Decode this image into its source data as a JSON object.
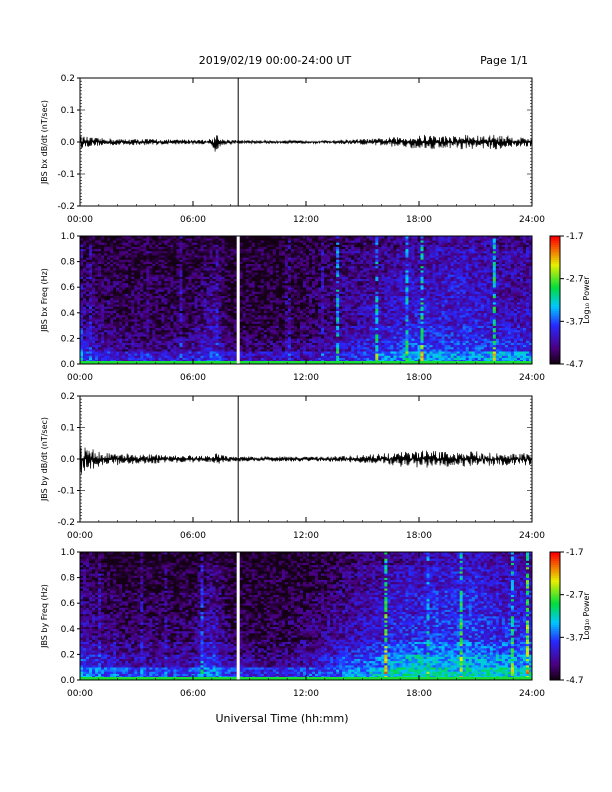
{
  "header": {
    "date_range": "2019/02/19  00:00-24:00 UT",
    "page": "Page 1/1"
  },
  "footer": {
    "xlabel": "Universal Time (hh:mm)"
  },
  "chart_data": [
    {
      "id": "bx-waveform",
      "type": "line",
      "ylabel": "JBS bx dB/dt (nT/sec)",
      "xlabel": "",
      "xlim": [
        0,
        24
      ],
      "ylim": [
        -0.2,
        0.2
      ],
      "x_tick_labels": [
        "00:00",
        "06:00",
        "12:00",
        "18:00",
        "24:00"
      ],
      "y_tick_labels": [
        "0.2",
        "0.1",
        "0.0",
        "-0.1",
        "-0.2"
      ],
      "marker_hour": 8.4,
      "x": [
        0,
        0.5,
        1,
        1.5,
        2,
        2.5,
        3,
        3.5,
        4,
        4.5,
        5,
        5.5,
        6,
        6.5,
        7,
        7.25,
        7.5,
        8,
        8.5,
        9,
        9.5,
        10,
        10.5,
        11,
        11.5,
        12,
        12.5,
        13,
        13.5,
        14,
        14.5,
        15,
        15.5,
        16,
        16.5,
        17,
        17.5,
        18,
        18.5,
        19,
        19.5,
        20,
        20.5,
        21,
        21.5,
        22,
        22.5,
        23,
        23.5,
        24
      ],
      "series": [
        {
          "values_max": [
            0.02,
            0.015,
            0.012,
            0.012,
            0.01,
            0.01,
            0.01,
            0.01,
            0.01,
            0.008,
            0.008,
            0.008,
            0.008,
            0.008,
            0.01,
            0.03,
            0.01,
            0.008,
            0.005,
            0.005,
            0.005,
            0.005,
            0.005,
            0.005,
            0.005,
            0.005,
            0.005,
            0.005,
            0.006,
            0.008,
            0.008,
            0.01,
            0.01,
            0.012,
            0.015,
            0.015,
            0.02,
            0.02,
            0.025,
            0.02,
            0.02,
            0.02,
            0.025,
            0.02,
            0.02,
            0.025,
            0.02,
            0.02,
            0.015,
            0.015
          ],
          "values_min": [
            -0.02,
            -0.015,
            -0.012,
            -0.012,
            -0.01,
            -0.01,
            -0.01,
            -0.01,
            -0.01,
            -0.008,
            -0.008,
            -0.008,
            -0.008,
            -0.008,
            -0.01,
            -0.04,
            -0.01,
            -0.008,
            -0.005,
            -0.005,
            -0.005,
            -0.005,
            -0.005,
            -0.005,
            -0.005,
            -0.005,
            -0.005,
            -0.005,
            -0.006,
            -0.008,
            -0.008,
            -0.01,
            -0.01,
            -0.012,
            -0.015,
            -0.015,
            -0.02,
            -0.02,
            -0.025,
            -0.02,
            -0.02,
            -0.02,
            -0.025,
            -0.02,
            -0.02,
            -0.025,
            -0.02,
            -0.02,
            -0.015,
            -0.015
          ]
        }
      ]
    },
    {
      "id": "bx-spectrogram",
      "type": "heatmap",
      "ylabel": "JBS bx Freq (Hz)",
      "xlim": [
        0,
        24
      ],
      "ylim": [
        0,
        1.0
      ],
      "x_tick_labels": [
        "00:00",
        "06:00",
        "12:00",
        "18:00",
        "24:00"
      ],
      "y_tick_labels": [
        "1.0",
        "0.8",
        "0.6",
        "0.4",
        "0.2",
        "0.0"
      ],
      "colorbar": {
        "label": "Log₁₀ Power",
        "tick_labels": [
          "-1.7",
          "-2.7",
          "-3.7",
          "-4.7"
        ],
        "range": [
          -4.7,
          -1.7
        ]
      },
      "gap_hour": 8.4,
      "hour_bins": [
        0,
        1,
        2,
        3,
        4,
        5,
        6,
        7,
        8,
        9,
        10,
        11,
        12,
        13,
        14,
        15,
        16,
        17,
        18,
        19,
        20,
        21,
        22,
        23
      ],
      "freq_bins": [
        0.0,
        0.02,
        0.1,
        0.2,
        0.3,
        0.5,
        0.7,
        0.9
      ],
      "log_power": [
        [
          -3.2,
          -3.3,
          -3.3,
          -3.3,
          -3.3,
          -3.3,
          -3.3,
          -3.2,
          -3.3,
          -3.3,
          -3.3,
          -3.3,
          -3.3,
          -3.3,
          -3.2,
          -3.2,
          -3.1,
          -3.1,
          -3.0,
          -3.0,
          -3.0,
          -3.0,
          -3.0,
          -3.1
        ],
        [
          -3.7,
          -3.9,
          -4.0,
          -4.0,
          -4.0,
          -4.0,
          -4.0,
          -3.8,
          -4.1,
          -4.1,
          -4.1,
          -4.1,
          -4.1,
          -4.0,
          -3.9,
          -3.8,
          -3.6,
          -3.5,
          -3.4,
          -3.4,
          -3.5,
          -3.5,
          -3.4,
          -3.5
        ],
        [
          -4.0,
          -4.2,
          -4.3,
          -4.3,
          -4.3,
          -4.3,
          -4.3,
          -4.0,
          -4.4,
          -4.4,
          -4.4,
          -4.4,
          -4.3,
          -4.2,
          -4.1,
          -4.0,
          -3.9,
          -3.8,
          -3.7,
          -3.8,
          -3.8,
          -3.8,
          -3.8,
          -3.9
        ],
        [
          -4.2,
          -4.3,
          -4.4,
          -4.4,
          -4.4,
          -4.4,
          -4.4,
          -4.1,
          -4.5,
          -4.5,
          -4.5,
          -4.5,
          -4.4,
          -4.3,
          -4.2,
          -4.1,
          -4.0,
          -3.9,
          -3.9,
          -3.9,
          -3.9,
          -3.9,
          -4.0,
          -4.0
        ],
        [
          -4.3,
          -4.4,
          -4.5,
          -4.5,
          -4.5,
          -4.5,
          -4.5,
          -4.2,
          -4.6,
          -4.6,
          -4.6,
          -4.6,
          -4.5,
          -4.4,
          -4.3,
          -4.2,
          -4.1,
          -4.1,
          -4.0,
          -4.0,
          -4.0,
          -4.0,
          -4.1,
          -4.1
        ],
        [
          -4.4,
          -4.5,
          -4.5,
          -4.5,
          -4.5,
          -4.5,
          -4.5,
          -4.3,
          -4.6,
          -4.6,
          -4.6,
          -4.6,
          -4.5,
          -4.4,
          -4.3,
          -4.3,
          -4.2,
          -4.1,
          -4.1,
          -4.1,
          -4.0,
          -4.1,
          -4.1,
          -4.2
        ],
        [
          -4.5,
          -4.5,
          -4.6,
          -4.6,
          -4.6,
          -4.6,
          -4.6,
          -4.4,
          -4.6,
          -4.6,
          -4.6,
          -4.6,
          -4.5,
          -4.5,
          -4.4,
          -4.3,
          -4.3,
          -4.2,
          -4.2,
          -4.1,
          -4.1,
          -4.1,
          -4.2,
          -4.2
        ],
        [
          -4.6,
          -4.6,
          -4.6,
          -4.6,
          -4.6,
          -4.6,
          -4.6,
          -4.5,
          -4.7,
          -4.7,
          -4.7,
          -4.7,
          -4.6,
          -4.6,
          -4.5,
          -4.4,
          -4.4,
          -4.3,
          -4.3,
          -4.2,
          -4.2,
          -4.2,
          -4.3,
          -4.3
        ]
      ]
    },
    {
      "id": "by-waveform",
      "type": "line",
      "ylabel": "JBS by dB/dt (nT/sec)",
      "xlim": [
        0,
        24
      ],
      "ylim": [
        -0.2,
        0.2
      ],
      "x_tick_labels": [
        "00:00",
        "06:00",
        "12:00",
        "18:00",
        "24:00"
      ],
      "y_tick_labels": [
        "0.2",
        "0.1",
        "0.0",
        "-0.1",
        "-0.2"
      ],
      "marker_hour": 8.4,
      "x": [
        0,
        0.5,
        1,
        1.5,
        2,
        2.5,
        3,
        3.5,
        4,
        4.5,
        5,
        5.5,
        6,
        6.5,
        7,
        7.25,
        7.5,
        8,
        8.5,
        9,
        9.5,
        10,
        10.5,
        11,
        11.5,
        12,
        12.5,
        13,
        13.5,
        14,
        14.5,
        15,
        15.5,
        16,
        16.5,
        17,
        17.5,
        18,
        18.5,
        19,
        19.5,
        20,
        20.5,
        21,
        21.5,
        22,
        22.5,
        23,
        23.5,
        24
      ],
      "series": [
        {
          "values_max": [
            0.05,
            0.035,
            0.025,
            0.02,
            0.02,
            0.018,
            0.015,
            0.015,
            0.015,
            0.012,
            0.012,
            0.012,
            0.012,
            0.01,
            0.012,
            0.02,
            0.012,
            0.01,
            0.008,
            0.008,
            0.008,
            0.008,
            0.008,
            0.008,
            0.008,
            0.008,
            0.008,
            0.008,
            0.01,
            0.01,
            0.012,
            0.012,
            0.015,
            0.018,
            0.02,
            0.025,
            0.025,
            0.03,
            0.03,
            0.025,
            0.025,
            0.02,
            0.025,
            0.025,
            0.02,
            0.025,
            0.02,
            0.02,
            0.02,
            0.02
          ],
          "values_min": [
            -0.05,
            -0.035,
            -0.025,
            -0.02,
            -0.02,
            -0.018,
            -0.015,
            -0.015,
            -0.015,
            -0.012,
            -0.012,
            -0.012,
            -0.012,
            -0.01,
            -0.012,
            -0.02,
            -0.012,
            -0.01,
            -0.008,
            -0.008,
            -0.008,
            -0.008,
            -0.008,
            -0.008,
            -0.008,
            -0.008,
            -0.008,
            -0.008,
            -0.01,
            -0.01,
            -0.012,
            -0.012,
            -0.015,
            -0.018,
            -0.02,
            -0.025,
            -0.025,
            -0.03,
            -0.03,
            -0.025,
            -0.025,
            -0.02,
            -0.025,
            -0.025,
            -0.02,
            -0.025,
            -0.02,
            -0.02,
            -0.02,
            -0.02
          ]
        }
      ]
    },
    {
      "id": "by-spectrogram",
      "type": "heatmap",
      "ylabel": "JBS by Freq (Hz)",
      "xlim": [
        0,
        24
      ],
      "ylim": [
        0,
        1.0
      ],
      "x_tick_labels": [
        "00:00",
        "06:00",
        "12:00",
        "18:00",
        "24:00"
      ],
      "y_tick_labels": [
        "1.0",
        "0.8",
        "0.6",
        "0.4",
        "0.2",
        "0.0"
      ],
      "colorbar": {
        "label": "Log₁₀ Power",
        "tick_labels": [
          "-1.7",
          "-2.7",
          "-3.7",
          "-4.7"
        ],
        "range": [
          -4.7,
          -1.7
        ]
      },
      "gap_hour": 8.4,
      "hour_bins": [
        0,
        1,
        2,
        3,
        4,
        5,
        6,
        7,
        8,
        9,
        10,
        11,
        12,
        13,
        14,
        15,
        16,
        17,
        18,
        19,
        20,
        21,
        22,
        23
      ],
      "freq_bins": [
        0.0,
        0.02,
        0.1,
        0.2,
        0.3,
        0.5,
        0.7,
        0.9
      ],
      "log_power": [
        [
          -3.1,
          -3.2,
          -3.2,
          -3.2,
          -3.2,
          -3.2,
          -3.2,
          -3.1,
          -3.2,
          -3.2,
          -3.2,
          -3.2,
          -3.2,
          -3.2,
          -3.1,
          -3.1,
          -3.0,
          -3.0,
          -3.0,
          -3.0,
          -3.0,
          -3.0,
          -3.0,
          -3.0
        ],
        [
          -3.4,
          -3.6,
          -3.7,
          -3.8,
          -3.8,
          -3.8,
          -3.8,
          -3.5,
          -3.8,
          -3.9,
          -3.9,
          -3.9,
          -3.8,
          -3.7,
          -3.6,
          -3.5,
          -3.3,
          -3.2,
          -3.2,
          -3.2,
          -3.3,
          -3.2,
          -3.2,
          -3.3
        ],
        [
          -3.8,
          -4.0,
          -4.1,
          -4.2,
          -4.2,
          -4.2,
          -4.2,
          -3.8,
          -4.2,
          -4.3,
          -4.3,
          -4.3,
          -4.2,
          -4.0,
          -3.8,
          -3.7,
          -3.6,
          -3.4,
          -3.3,
          -3.4,
          -3.4,
          -3.4,
          -3.4,
          -3.5
        ],
        [
          -4.0,
          -4.2,
          -4.3,
          -4.3,
          -4.3,
          -4.3,
          -4.3,
          -4.0,
          -4.4,
          -4.4,
          -4.4,
          -4.4,
          -4.3,
          -4.2,
          -4.0,
          -3.9,
          -3.8,
          -3.7,
          -3.6,
          -3.6,
          -3.6,
          -3.6,
          -3.7,
          -3.7
        ],
        [
          -4.2,
          -4.3,
          -4.4,
          -4.4,
          -4.4,
          -4.4,
          -4.4,
          -4.1,
          -4.5,
          -4.5,
          -4.5,
          -4.5,
          -4.4,
          -4.3,
          -4.2,
          -4.1,
          -4.0,
          -3.9,
          -3.9,
          -3.8,
          -3.8,
          -3.8,
          -3.9,
          -3.9
        ],
        [
          -4.3,
          -4.4,
          -4.5,
          -4.5,
          -4.5,
          -4.5,
          -4.5,
          -4.2,
          -4.6,
          -4.6,
          -4.6,
          -4.6,
          -4.5,
          -4.4,
          -4.3,
          -4.2,
          -4.1,
          -4.0,
          -4.0,
          -3.9,
          -3.9,
          -3.9,
          -4.0,
          -4.0
        ],
        [
          -4.4,
          -4.5,
          -4.6,
          -4.6,
          -4.6,
          -4.6,
          -4.6,
          -4.3,
          -4.6,
          -4.6,
          -4.6,
          -4.6,
          -4.6,
          -4.5,
          -4.4,
          -4.3,
          -4.2,
          -4.1,
          -4.1,
          -4.0,
          -4.0,
          -4.0,
          -4.1,
          -4.1
        ],
        [
          -4.5,
          -4.6,
          -4.7,
          -4.7,
          -4.7,
          -4.7,
          -4.7,
          -4.5,
          -4.7,
          -4.7,
          -4.7,
          -4.7,
          -4.6,
          -4.6,
          -4.5,
          -4.4,
          -4.3,
          -4.3,
          -4.2,
          -4.1,
          -4.1,
          -4.1,
          -4.2,
          -4.2
        ]
      ]
    }
  ]
}
